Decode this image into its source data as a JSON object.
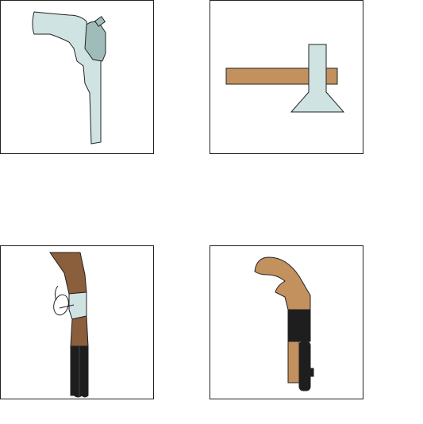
{
  "colors": {
    "steel_light": "#d0e3e3",
    "steel_mid": "#9fbcba",
    "wood_light": "#c2915e",
    "wood_dark": "#8b5e3c",
    "black": "#1e1e1e",
    "outline": "#222222",
    "background": "#ffffff"
  },
  "tiles": [
    {
      "icon": "revolver-icon"
    },
    {
      "icon": "tomahawk-icon"
    },
    {
      "icon": "flintlock-rifle-icon"
    },
    {
      "icon": "sawed-off-shotgun-icon"
    }
  ]
}
